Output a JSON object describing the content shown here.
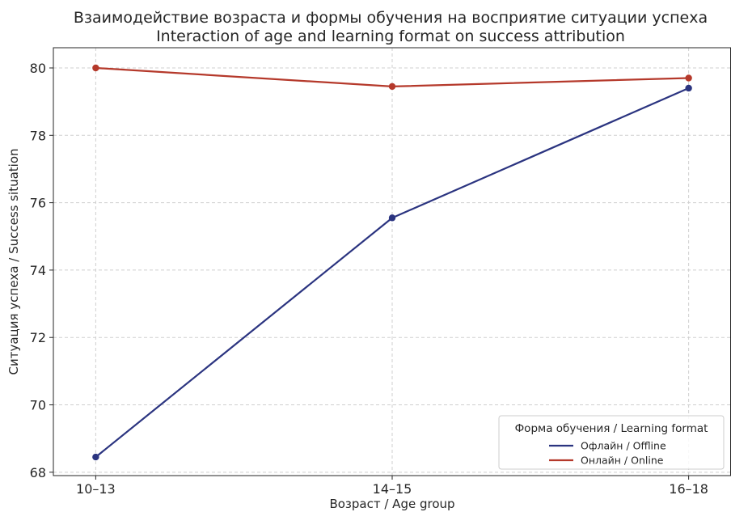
{
  "chart_data": {
    "type": "line",
    "title": "Взаимодействие возраста и формы обучения на восприятие ситуации успеха",
    "subtitle": "Interaction of age and learning format on success attribution",
    "xlabel": "Возраст / Age group",
    "ylabel": "Ситуация успеха / Success situation",
    "categories": [
      "10–13",
      "14–15",
      "16–18"
    ],
    "ylim": [
      67.9,
      80.6
    ],
    "yticks": [
      68,
      70,
      72,
      74,
      76,
      78,
      80
    ],
    "grid": true,
    "legend": {
      "title": "Форма обучения / Learning format",
      "placement": "lower-right"
    },
    "series": [
      {
        "name": "Офлайн / Offline",
        "color": "#2b3480",
        "values": [
          68.45,
          75.55,
          79.4
        ]
      },
      {
        "name": "Онлайн / Online",
        "color": "#b5392b",
        "values": [
          80.0,
          79.45,
          79.7
        ]
      }
    ]
  }
}
